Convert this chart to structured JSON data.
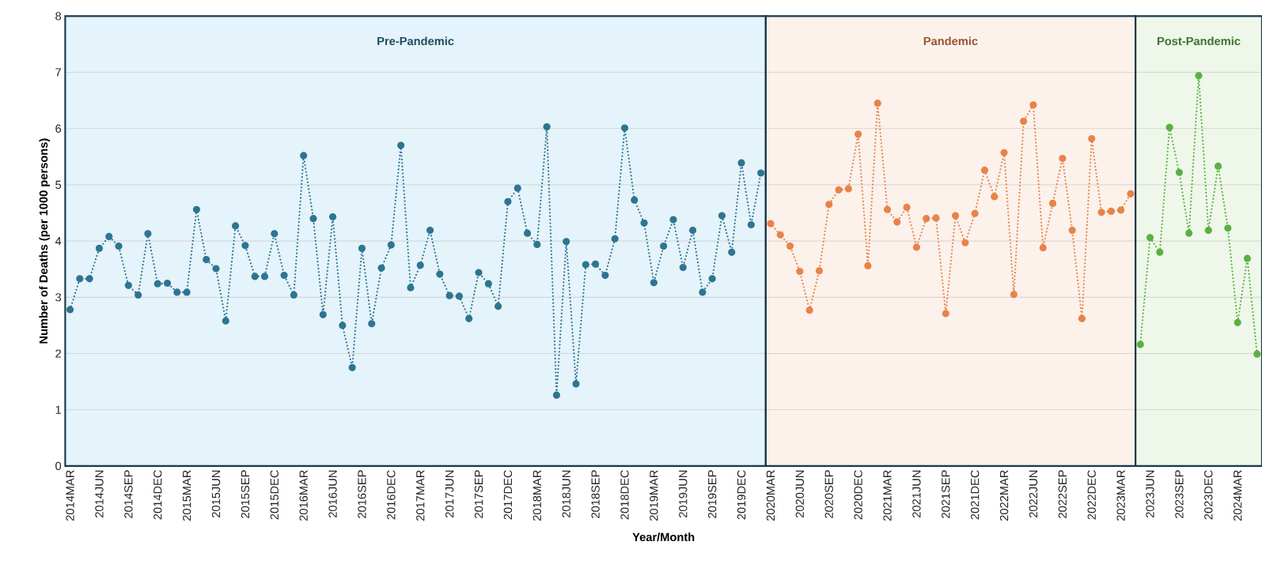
{
  "chart_data": {
    "type": "line",
    "xlabel": "Year/Month",
    "ylabel": "Number of Deaths (per 1000 persons)",
    "xlim": [
      "2014-02-16",
      "2024-05-16"
    ],
    "ylim": [
      0,
      8
    ],
    "yticks": [
      0,
      1,
      2,
      3,
      4,
      5,
      6,
      7,
      8
    ],
    "xticks": [
      {
        "value": "2014-03",
        "label": "2014MAR"
      },
      {
        "value": "2014-06",
        "label": "2014JUN"
      },
      {
        "value": "2014-09",
        "label": "2014SEP"
      },
      {
        "value": "2014-12",
        "label": "2014DEC"
      },
      {
        "value": "2015-03",
        "label": "2015MAR"
      },
      {
        "value": "2015-06",
        "label": "2015JUN"
      },
      {
        "value": "2015-09",
        "label": "2015SEP"
      },
      {
        "value": "2015-12",
        "label": "2015DEC"
      },
      {
        "value": "2016-03",
        "label": "2016MAR"
      },
      {
        "value": "2016-06",
        "label": "2016JUN"
      },
      {
        "value": "2016-09",
        "label": "2016SEP"
      },
      {
        "value": "2016-12",
        "label": "2016DEC"
      },
      {
        "value": "2017-03",
        "label": "2017MAR"
      },
      {
        "value": "2017-06",
        "label": "2017JUN"
      },
      {
        "value": "2017-09",
        "label": "2017SEP"
      },
      {
        "value": "2017-12",
        "label": "2017DEC"
      },
      {
        "value": "2018-03",
        "label": "2018MAR"
      },
      {
        "value": "2018-06",
        "label": "2018JUN"
      },
      {
        "value": "2018-09",
        "label": "2018SEP"
      },
      {
        "value": "2018-12",
        "label": "2018DEC"
      },
      {
        "value": "2019-03",
        "label": "2019MAR"
      },
      {
        "value": "2019-06",
        "label": "2019JUN"
      },
      {
        "value": "2019-09",
        "label": "2019SEP"
      },
      {
        "value": "2019-12",
        "label": "2019DEC"
      },
      {
        "value": "2020-03",
        "label": "2020MAR"
      },
      {
        "value": "2020-06",
        "label": "2020JUN"
      },
      {
        "value": "2020-09",
        "label": "2020SEP"
      },
      {
        "value": "2020-12",
        "label": "2020DEC"
      },
      {
        "value": "2021-03",
        "label": "2021MAR"
      },
      {
        "value": "2021-06",
        "label": "2021JUN"
      },
      {
        "value": "2021-09",
        "label": "2021SEP"
      },
      {
        "value": "2021-12",
        "label": "2021DEC"
      },
      {
        "value": "2022-03",
        "label": "2022MAR"
      },
      {
        "value": "2022-06",
        "label": "2022JUN"
      },
      {
        "value": "2022-09",
        "label": "2022SEP"
      },
      {
        "value": "2022-12",
        "label": "2022DEC"
      },
      {
        "value": "2023-03",
        "label": "2023MAR"
      },
      {
        "value": "2023-06",
        "label": "2023JUN"
      },
      {
        "value": "2023-09",
        "label": "2023SEP"
      },
      {
        "value": "2023-12",
        "label": "2023DEC"
      },
      {
        "value": "2024-03",
        "label": "2024MAR"
      }
    ],
    "grid": "y",
    "marker": "circle",
    "line_style": "dotted",
    "bands": [
      {
        "axis": "x",
        "from": "2014-02-16",
        "to": "2020-02-16",
        "label": "Pre-Pandemic",
        "color": "#e5f3fa"
      },
      {
        "axis": "x",
        "from": "2020-02-16",
        "to": "2023-04-16",
        "label": "Pandemic",
        "color": "#fcf1eb"
      },
      {
        "axis": "x",
        "from": "2023-04-16",
        "to": "2024-05-16",
        "label": "Post-Pandemic",
        "color": "#eef7e9"
      }
    ],
    "series": [
      {
        "color": "#2e7592",
        "x": [
          "2014-03",
          "2014-04",
          "2014-05",
          "2014-06",
          "2014-07",
          "2014-08",
          "2014-09",
          "2014-10",
          "2014-11",
          "2014-12",
          "2015-01",
          "2015-02",
          "2015-03",
          "2015-04",
          "2015-05",
          "2015-06",
          "2015-07",
          "2015-08",
          "2015-09",
          "2015-10",
          "2015-11",
          "2015-12",
          "2016-01",
          "2016-02",
          "2016-03",
          "2016-04",
          "2016-05",
          "2016-06",
          "2016-07",
          "2016-08",
          "2016-09",
          "2016-10",
          "2016-11",
          "2016-12",
          "2017-01",
          "2017-02",
          "2017-03",
          "2017-04",
          "2017-05",
          "2017-06",
          "2017-07",
          "2017-08",
          "2017-09",
          "2017-10",
          "2017-11",
          "2017-12",
          "2018-01",
          "2018-02",
          "2018-03",
          "2018-04",
          "2018-05",
          "2018-06",
          "2018-07",
          "2018-08",
          "2018-09",
          "2018-10",
          "2018-11",
          "2018-12",
          "2019-01",
          "2019-02",
          "2019-03",
          "2019-04",
          "2019-05",
          "2019-06",
          "2019-07",
          "2019-08",
          "2019-09",
          "2019-10",
          "2019-11",
          "2019-12",
          "2020-01",
          "2020-02"
        ],
        "values": [
          2.78,
          3.33,
          3.33,
          3.87,
          4.08,
          3.91,
          3.21,
          3.04,
          4.13,
          3.24,
          3.25,
          3.09,
          3.09,
          4.56,
          3.67,
          3.51,
          2.58,
          4.27,
          3.92,
          3.37,
          3.37,
          4.13,
          3.39,
          3.04,
          5.52,
          4.4,
          2.69,
          4.43,
          2.5,
          1.75,
          3.87,
          2.53,
          3.52,
          3.93,
          5.7,
          3.17,
          3.57,
          4.19,
          3.41,
          3.03,
          3.02,
          2.62,
          3.44,
          3.24,
          2.84,
          4.7,
          4.94,
          4.14,
          3.94,
          6.03,
          1.26,
          3.99,
          1.46,
          3.58,
          3.59,
          3.39,
          4.04,
          6.01,
          4.73,
          4.32,
          3.26,
          3.91,
          4.38,
          3.53,
          4.19,
          3.09,
          3.33,
          4.45,
          3.8,
          5.39,
          4.29,
          5.21
        ]
      },
      {
        "color": "#e8834a",
        "x": [
          "2020-03",
          "2020-04",
          "2020-05",
          "2020-06",
          "2020-07",
          "2020-08",
          "2020-09",
          "2020-10",
          "2020-11",
          "2020-12",
          "2021-01",
          "2021-02",
          "2021-03",
          "2021-04",
          "2021-05",
          "2021-06",
          "2021-07",
          "2021-08",
          "2021-09",
          "2021-10",
          "2021-11",
          "2021-12",
          "2022-01",
          "2022-02",
          "2022-03",
          "2022-04",
          "2022-05",
          "2022-06",
          "2022-07",
          "2022-08",
          "2022-09",
          "2022-10",
          "2022-11",
          "2022-12",
          "2023-01",
          "2023-02",
          "2023-03",
          "2023-04"
        ],
        "values": [
          4.31,
          4.11,
          3.91,
          3.46,
          2.77,
          3.47,
          4.65,
          4.91,
          4.93,
          5.9,
          3.56,
          6.45,
          4.56,
          4.34,
          4.6,
          3.89,
          4.4,
          4.41,
          2.71,
          4.45,
          3.97,
          4.49,
          5.26,
          4.79,
          5.57,
          3.05,
          6.13,
          6.42,
          3.88,
          4.67,
          5.47,
          4.19,
          2.62,
          5.82,
          4.51,
          4.53,
          4.55,
          4.84
        ]
      },
      {
        "color": "#5cb043",
        "x": [
          "2023-05",
          "2023-06",
          "2023-07",
          "2023-08",
          "2023-09",
          "2023-10",
          "2023-11",
          "2023-12",
          "2024-01",
          "2024-02",
          "2024-03",
          "2024-04",
          "2024-05"
        ],
        "values": [
          2.16,
          4.06,
          3.8,
          6.02,
          5.22,
          4.14,
          6.94,
          4.19,
          5.33,
          4.23,
          2.55,
          3.69,
          1.99
        ]
      }
    ]
  }
}
